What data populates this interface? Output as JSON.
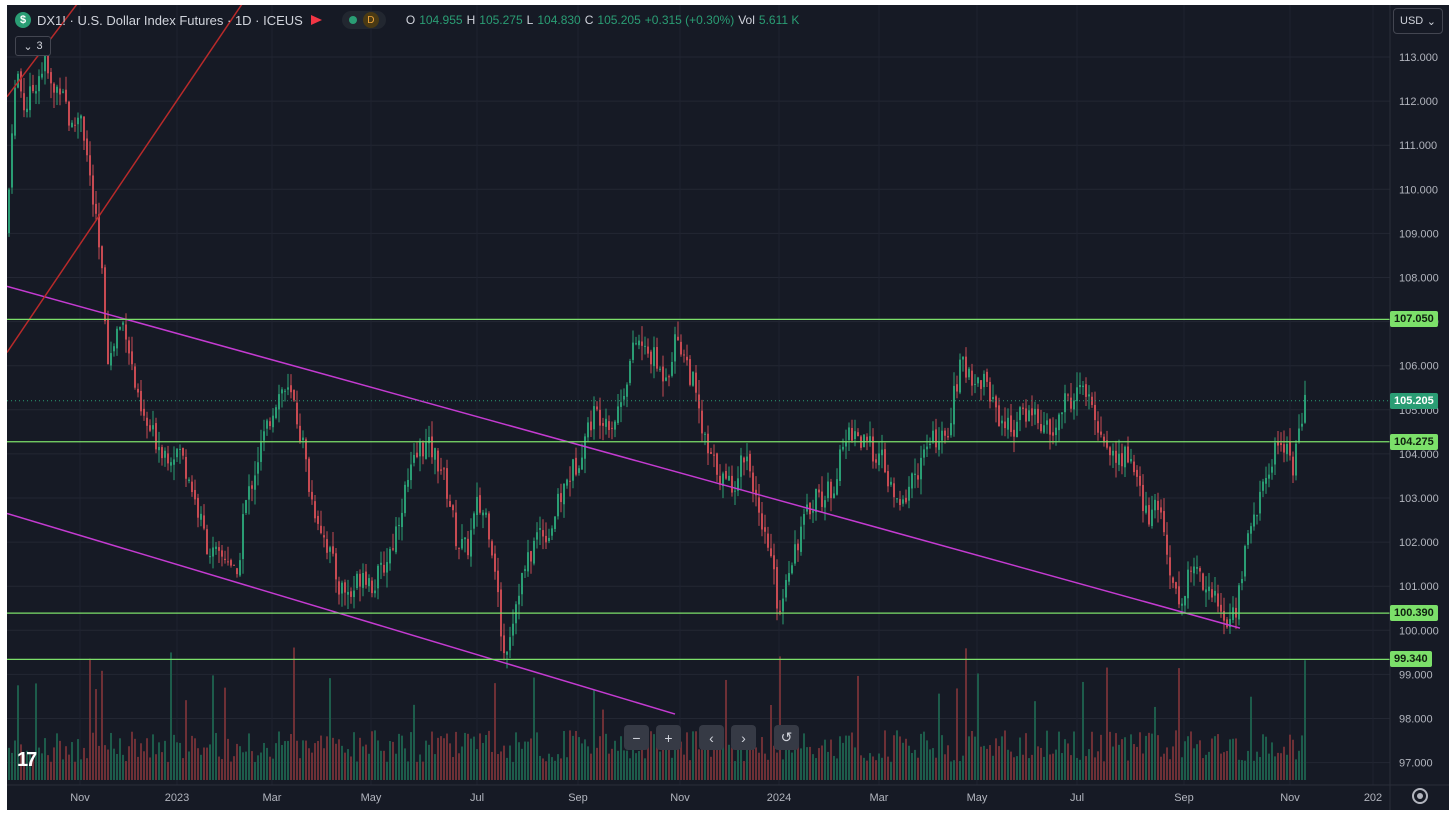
{
  "header": {
    "symbol_badge": "$",
    "title": "DX1! · U.S. Dollar Index Futures · 1D · ICEUS",
    "status_letter": "D",
    "ohlc": [
      {
        "label": "O",
        "value": "104.955"
      },
      {
        "label": "H",
        "value": "105.275"
      },
      {
        "label": "L",
        "value": "104.830"
      },
      {
        "label": "C",
        "value": "105.205"
      },
      {
        "label": "",
        "value": "+0.315 (+0.30%)"
      },
      {
        "label": "Vol",
        "value": "5.611 K"
      }
    ]
  },
  "indicator_toggle": "3",
  "currency": "USD",
  "nav": {
    "zoom_out": "−",
    "zoom_in": "+",
    "scroll_left": "‹",
    "scroll_right": "›",
    "reset": "↺"
  },
  "logo_text": "17",
  "colors": {
    "background": "#161a25",
    "up": "#2a9d74",
    "down": "#c74a52",
    "support_line": "#7ce06a",
    "trend_line": "#c43bd1",
    "red_line": "#b82a2a",
    "text": "#b2b5be"
  },
  "chart_data": {
    "type": "candlestick",
    "y_axis_ticks": [
      "113.000",
      "112.000",
      "111.000",
      "110.000",
      "109.000",
      "108.000",
      "107.000",
      "106.000",
      "105.000",
      "104.000",
      "103.000",
      "102.000",
      "101.000",
      "100.000",
      "99.000",
      "98.000",
      "97.000"
    ],
    "x_axis_labels": [
      "Nov",
      "2023",
      "Mar",
      "May",
      "Jul",
      "Sep",
      "Nov",
      "2024",
      "Mar",
      "May",
      "Jul",
      "Sep",
      "Nov",
      "202"
    ],
    "price_markers": [
      {
        "label": "107.050",
        "value": 107.05,
        "kind": "level"
      },
      {
        "label": "105.205",
        "value": 105.205,
        "kind": "last"
      },
      {
        "label": "104.275",
        "value": 104.275,
        "kind": "level"
      },
      {
        "label": "100.390",
        "value": 100.39,
        "kind": "level"
      },
      {
        "label": "99.340",
        "value": 99.34,
        "kind": "level"
      }
    ],
    "price_path": [
      [
        0,
        109.0
      ],
      [
        5,
        111.5
      ],
      [
        10,
        112.7
      ],
      [
        18,
        111.8
      ],
      [
        28,
        112.4
      ],
      [
        38,
        112.9
      ],
      [
        46,
        112.1
      ],
      [
        55,
        112.5
      ],
      [
        64,
        111.3
      ],
      [
        74,
        111.8
      ],
      [
        82,
        110.4
      ],
      [
        90,
        109.0
      ],
      [
        96,
        107.8
      ],
      [
        102,
        106.0
      ],
      [
        110,
        106.8
      ],
      [
        118,
        107.0
      ],
      [
        124,
        106.1
      ],
      [
        132,
        105.0
      ],
      [
        140,
        104.6
      ],
      [
        150,
        104.3
      ],
      [
        160,
        104.0
      ],
      [
        172,
        104.1
      ],
      [
        182,
        103.5
      ],
      [
        192,
        102.6
      ],
      [
        202,
        101.8
      ],
      [
        212,
        101.6
      ],
      [
        222,
        101.7
      ],
      [
        230,
        101.0
      ],
      [
        236,
        102.6
      ],
      [
        244,
        103.3
      ],
      [
        252,
        104.0
      ],
      [
        260,
        104.6
      ],
      [
        268,
        105.2
      ],
      [
        276,
        105.5
      ],
      [
        286,
        105.2
      ],
      [
        296,
        104.2
      ],
      [
        304,
        103.0
      ],
      [
        312,
        102.5
      ],
      [
        322,
        101.8
      ],
      [
        332,
        101.0
      ],
      [
        344,
        100.8
      ],
      [
        356,
        101.4
      ],
      [
        366,
        101.0
      ],
      [
        376,
        101.4
      ],
      [
        386,
        102.0
      ],
      [
        396,
        103.0
      ],
      [
        406,
        103.7
      ],
      [
        414,
        104.2
      ],
      [
        424,
        104.1
      ],
      [
        434,
        103.7
      ],
      [
        442,
        103.0
      ],
      [
        450,
        102.0
      ],
      [
        460,
        101.8
      ],
      [
        470,
        102.8
      ],
      [
        480,
        102.6
      ],
      [
        488,
        101.5
      ],
      [
        493,
        100.2
      ],
      [
        497,
        99.45
      ],
      [
        504,
        100.1
      ],
      [
        512,
        101.0
      ],
      [
        522,
        101.6
      ],
      [
        532,
        102.3
      ],
      [
        542,
        102.2
      ],
      [
        552,
        102.9
      ],
      [
        562,
        103.5
      ],
      [
        570,
        103.8
      ],
      [
        578,
        104.4
      ],
      [
        586,
        104.9
      ],
      [
        596,
        104.9
      ],
      [
        606,
        104.7
      ],
      [
        614,
        105.2
      ],
      [
        622,
        106.0
      ],
      [
        630,
        106.6
      ],
      [
        638,
        106.3
      ],
      [
        646,
        106.2
      ],
      [
        654,
        105.8
      ],
      [
        662,
        106.0
      ],
      [
        670,
        106.7
      ],
      [
        678,
        106.2
      ],
      [
        686,
        105.6
      ],
      [
        694,
        104.6
      ],
      [
        702,
        103.9
      ],
      [
        710,
        103.7
      ],
      [
        718,
        103.3
      ],
      [
        728,
        103.4
      ],
      [
        738,
        104.1
      ],
      [
        746,
        103.4
      ],
      [
        754,
        102.1
      ],
      [
        762,
        101.9
      ],
      [
        770,
        100.7
      ],
      [
        774,
        100.45
      ],
      [
        780,
        101.4
      ],
      [
        790,
        102.0
      ],
      [
        798,
        102.5
      ],
      [
        808,
        103.1
      ],
      [
        818,
        103.0
      ],
      [
        828,
        103.4
      ],
      [
        838,
        104.3
      ],
      [
        846,
        104.6
      ],
      [
        856,
        104.2
      ],
      [
        866,
        104.1
      ],
      [
        876,
        103.8
      ],
      [
        886,
        103.0
      ],
      [
        894,
        102.7
      ],
      [
        902,
        103.3
      ],
      [
        912,
        103.7
      ],
      [
        920,
        104.1
      ],
      [
        930,
        104.4
      ],
      [
        938,
        104.2
      ],
      [
        946,
        105.2
      ],
      [
        954,
        106.0
      ],
      [
        962,
        105.9
      ],
      [
        970,
        105.6
      ],
      [
        978,
        105.7
      ],
      [
        986,
        105.2
      ],
      [
        996,
        104.7
      ],
      [
        1006,
        104.6
      ],
      [
        1016,
        104.9
      ],
      [
        1026,
        105.0
      ],
      [
        1036,
        104.6
      ],
      [
        1046,
        104.4
      ],
      [
        1056,
        105.1
      ],
      [
        1066,
        105.3
      ],
      [
        1076,
        105.5
      ],
      [
        1084,
        105.0
      ],
      [
        1092,
        104.6
      ],
      [
        1100,
        104.2
      ],
      [
        1110,
        103.8
      ],
      [
        1120,
        104.0
      ],
      [
        1128,
        103.7
      ],
      [
        1136,
        102.7
      ],
      [
        1144,
        102.6
      ],
      [
        1152,
        102.8
      ],
      [
        1160,
        101.9
      ],
      [
        1168,
        100.8
      ],
      [
        1174,
        100.6
      ],
      [
        1182,
        101.3
      ],
      [
        1190,
        101.4
      ],
      [
        1198,
        101.1
      ],
      [
        1206,
        100.8
      ],
      [
        1214,
        100.4
      ],
      [
        1222,
        100.1
      ],
      [
        1230,
        100.6
      ],
      [
        1238,
        101.8
      ],
      [
        1246,
        102.6
      ],
      [
        1254,
        103.0
      ],
      [
        1262,
        103.7
      ],
      [
        1270,
        104.2
      ],
      [
        1278,
        104.3
      ],
      [
        1286,
        103.7
      ],
      [
        1292,
        104.5
      ],
      [
        1298,
        105.2
      ]
    ],
    "support_levels": [
      107.05,
      104.275,
      100.39,
      99.34
    ],
    "trend_lines": [
      {
        "color": "magenta",
        "from": {
          "x": 0,
          "y": 107.8
        },
        "to": {
          "x": 1233,
          "y": 100.05
        }
      },
      {
        "color": "magenta",
        "from": {
          "x": 0,
          "y": 102.65
        },
        "to": {
          "x": 668,
          "y": 98.1
        }
      },
      {
        "color": "red",
        "from": {
          "x": 0,
          "y": 112.1
        },
        "to": {
          "x": 70,
          "y": 114.2
        }
      },
      {
        "color": "red",
        "from": {
          "x": 0,
          "y": 106.3
        },
        "to": {
          "x": 235,
          "y": 114.2
        }
      }
    ]
  }
}
